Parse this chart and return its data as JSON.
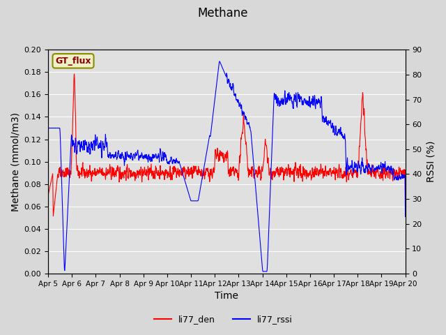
{
  "title": "Methane",
  "xlabel": "Time",
  "ylabel_left": "Methane (mmol/m3)",
  "ylabel_right": "RSSI (%)",
  "legend_label": "GT_flux",
  "series_labels": [
    "li77_den",
    "li77_rssi"
  ],
  "series_colors": [
    "red",
    "blue"
  ],
  "ylim_left": [
    0.0,
    0.2
  ],
  "ylim_right": [
    0,
    90
  ],
  "yticks_left": [
    0.0,
    0.02,
    0.04,
    0.06,
    0.08,
    0.1,
    0.12,
    0.14,
    0.16,
    0.18,
    0.2
  ],
  "yticks_right": [
    0,
    10,
    20,
    30,
    40,
    50,
    60,
    70,
    80,
    90
  ],
  "xtick_labels": [
    "Apr 5",
    "Apr 6",
    "Apr 7",
    "Apr 8",
    "Apr 9",
    "Apr 10",
    "Apr 11",
    "Apr 12",
    "Apr 13",
    "Apr 14",
    "Apr 15",
    "Apr 16",
    "Apr 17",
    "Apr 18",
    "Apr 19",
    "Apr 20"
  ],
  "bg_color": "#d8d8d8",
  "plot_bg_color": "#e0e0e0",
  "box_color": "#f0f0c8",
  "box_edge_color": "#8b8b00"
}
